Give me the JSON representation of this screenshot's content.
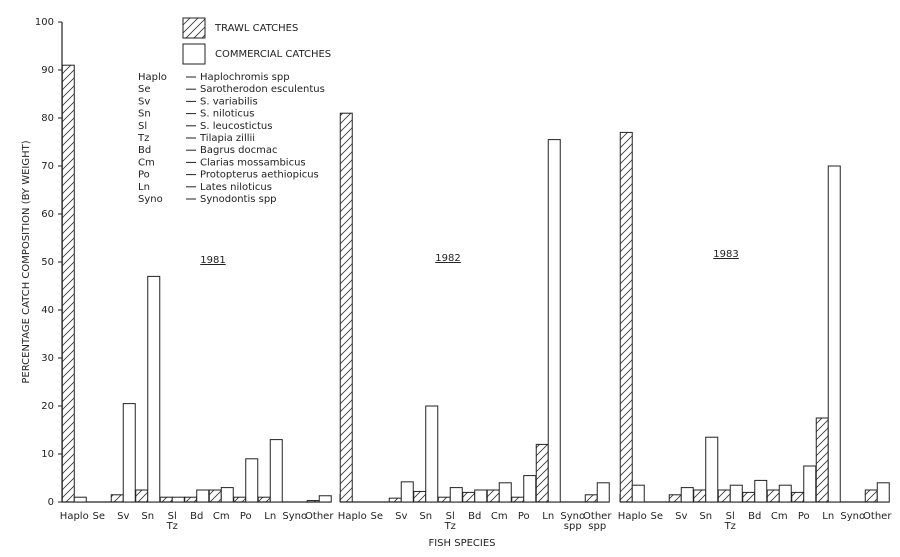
{
  "chart_data": {
    "type": "bar",
    "ylabel": "PERCENTAGE CATCH COMPOSITION (BY WEIGHT)",
    "xlabel": "FISH SPECIES",
    "ylim": [
      0,
      100
    ],
    "yticks": [
      0,
      10,
      20,
      30,
      40,
      50,
      60,
      70,
      80,
      90,
      100
    ],
    "series": [
      {
        "name": "TRAWL CATCHES",
        "color": "#222222",
        "hatch": true
      },
      {
        "name": "COMMERCIAL CATCHES",
        "color": "#222222",
        "hatch": false
      }
    ],
    "key": [
      {
        "code": "Haplo",
        "name": "Haplochromis spp"
      },
      {
        "code": "Se",
        "name": "Sarotherodon esculentus"
      },
      {
        "code": "Sv",
        "name": "S. variabilis"
      },
      {
        "code": "Sn",
        "name": "S. niloticus"
      },
      {
        "code": "Sl",
        "name": "S. leucostictus"
      },
      {
        "code": "Tz",
        "name": "Tilapia zillii"
      },
      {
        "code": "Bd",
        "name": "Bagrus docmac"
      },
      {
        "code": "Cm",
        "name": "Clarias mossambicus"
      },
      {
        "code": "Po",
        "name": "Protopterus aethiopicus"
      },
      {
        "code": "Ln",
        "name": "Lates niloticus"
      },
      {
        "code": "Syno",
        "name": "Synodontis spp"
      }
    ],
    "panels": [
      {
        "label": "1981",
        "categories": [
          "Haplo",
          "Se",
          "Sv",
          "Sn",
          "Sl\nTz",
          "Bd",
          "Cm",
          "Po",
          "Ln",
          "Syno",
          "Other"
        ],
        "series": [
          {
            "values": [
              91,
              0,
              1.5,
              2.5,
              1,
              1,
              2.5,
              1,
              1,
              0,
              0.3
            ]
          },
          {
            "values": [
              1,
              0,
              20.5,
              47,
              1,
              2.5,
              3,
              9,
              13,
              0,
              1.3
            ]
          }
        ]
      },
      {
        "label": "1982",
        "categories": [
          "Haplo",
          "Se",
          "Sv",
          "Sn",
          "Sl\nTz",
          "Bd",
          "Cm",
          "Po",
          "Ln",
          "Syno\nspp",
          "Other\nspp"
        ],
        "series": [
          {
            "values": [
              81,
              0,
              0.8,
              2.2,
              1,
              2,
              2.5,
              1,
              12,
              0,
              1.5
            ]
          },
          {
            "values": [
              0,
              0,
              4.2,
              20,
              3,
              2.5,
              4,
              5.5,
              75.5,
              0,
              4
            ]
          }
        ]
      },
      {
        "label": "1983",
        "categories": [
          "Haplo",
          "Se",
          "Sv",
          "Sn",
          "Sl\nTz",
          "Bd",
          "Cm",
          "Po",
          "Ln",
          "Syno",
          "Other"
        ],
        "series": [
          {
            "values": [
              77,
              0,
              1.5,
              2.5,
              2.5,
              2,
              2.5,
              2,
              17.5,
              0,
              2.5
            ]
          },
          {
            "values": [
              3.5,
              0,
              3,
              13.5,
              3.5,
              4.5,
              3.5,
              7.5,
              70,
              0,
              4
            ]
          }
        ]
      }
    ]
  }
}
